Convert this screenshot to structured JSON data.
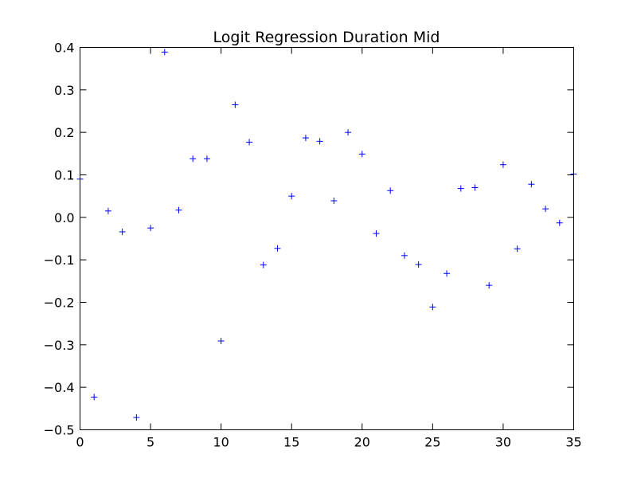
{
  "chart_data": {
    "type": "scatter",
    "title": "Logit Regression Duration Mid",
    "xlabel": "",
    "ylabel": "",
    "xlim": [
      0,
      35
    ],
    "ylim": [
      -0.5,
      0.4
    ],
    "grid": false,
    "marker": "+",
    "marker_color": "#0000ff",
    "xticks": [
      0,
      5,
      10,
      15,
      20,
      25,
      30,
      35
    ],
    "yticks": [
      -0.5,
      -0.4,
      -0.3,
      -0.2,
      -0.1,
      0.0,
      0.1,
      0.2,
      0.3,
      0.4
    ],
    "xtick_labels": [
      "0",
      "5",
      "10",
      "15",
      "20",
      "25",
      "30",
      "35"
    ],
    "ytick_labels": [
      "−0.5",
      "−0.4",
      "−0.3",
      "−0.2",
      "−0.1",
      "0.0",
      "0.1",
      "0.2",
      "0.3",
      "0.4"
    ],
    "points": [
      {
        "x": 0,
        "y": 0.09
      },
      {
        "x": 1,
        "y": -0.423
      },
      {
        "x": 2,
        "y": 0.015
      },
      {
        "x": 3,
        "y": -0.034
      },
      {
        "x": 4,
        "y": -0.471
      },
      {
        "x": 5,
        "y": -0.025
      },
      {
        "x": 6,
        "y": 0.389
      },
      {
        "x": 7,
        "y": 0.017
      },
      {
        "x": 8,
        "y": 0.138
      },
      {
        "x": 9,
        "y": 0.138
      },
      {
        "x": 10,
        "y": -0.291
      },
      {
        "x": 11,
        "y": 0.265
      },
      {
        "x": 12,
        "y": 0.177
      },
      {
        "x": 13,
        "y": -0.112
      },
      {
        "x": 14,
        "y": -0.073
      },
      {
        "x": 15,
        "y": 0.05
      },
      {
        "x": 16,
        "y": 0.187
      },
      {
        "x": 17,
        "y": 0.179
      },
      {
        "x": 18,
        "y": 0.039
      },
      {
        "x": 19,
        "y": 0.2
      },
      {
        "x": 20,
        "y": 0.149
      },
      {
        "x": 21,
        "y": -0.038
      },
      {
        "x": 22,
        "y": 0.063
      },
      {
        "x": 23,
        "y": -0.09
      },
      {
        "x": 24,
        "y": -0.111
      },
      {
        "x": 25,
        "y": -0.211
      },
      {
        "x": 26,
        "y": -0.132
      },
      {
        "x": 27,
        "y": 0.068
      },
      {
        "x": 28,
        "y": 0.07
      },
      {
        "x": 29,
        "y": -0.16
      },
      {
        "x": 30,
        "y": 0.124
      },
      {
        "x": 31,
        "y": -0.074
      },
      {
        "x": 32,
        "y": 0.078
      },
      {
        "x": 33,
        "y": 0.02
      },
      {
        "x": 34,
        "y": -0.013
      },
      {
        "x": 35,
        "y": 0.102
      }
    ]
  }
}
